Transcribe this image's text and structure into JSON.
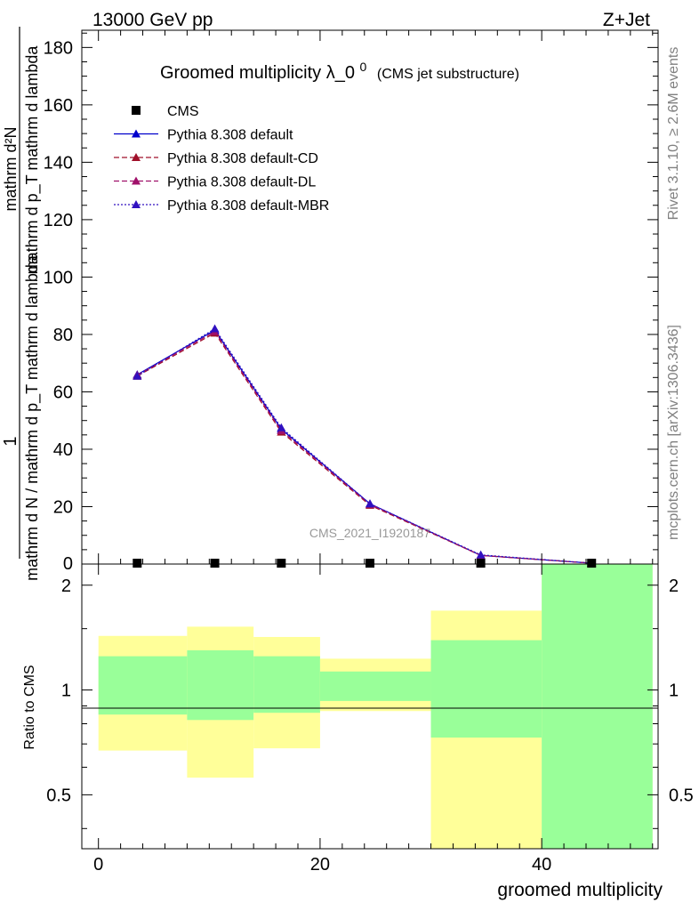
{
  "header": {
    "left": "13000 GeV pp",
    "right": "Z+Jet"
  },
  "side": {
    "rivet": "Rivet 3.1.10, ≥ 2.6M events",
    "mcplots": "mcplots.cern.ch [arXiv:1306.3436]"
  },
  "chart_data": {
    "type": "line",
    "title": "Groomed multiplicity",
    "title_symbol": "λ_0",
    "title_superscript": "0",
    "subtitle": "(CMS jet substructure)",
    "watermark": "CMS_2021_I1920187",
    "xlabel": "groomed multiplicity",
    "ylabel_numerator": "1",
    "ylabel_denominator": "mathrm d N / mathrm d p_T mathrm d lambda",
    "ylabel_top": "mathrm d²N",
    "ylabel_top_denominator": "mathrm d p_T mathrm d lambda",
    "ratio_ylabel": "Ratio to CMS",
    "xlim": [
      -1.5,
      50.5
    ],
    "ylim": [
      0,
      186
    ],
    "ratio_ylim": [
      0.35,
      2.3
    ],
    "ratio_log": true,
    "x_ticks": [
      0,
      20,
      40
    ],
    "y_ticks": [
      20,
      40,
      60,
      80,
      100,
      120,
      140,
      160,
      180
    ],
    "ratio_ticks": [
      {
        "v": 0.5,
        "label": "0.5"
      },
      {
        "v": 1,
        "label": "1"
      },
      {
        "v": 2,
        "label": "2"
      }
    ],
    "bin_edges": [
      0,
      8,
      14,
      20,
      30,
      40,
      50
    ],
    "x": [
      3.5,
      10.5,
      16.5,
      24.5,
      34.5,
      44.5
    ],
    "cms": [
      0.3,
      0.3,
      0.3,
      0.3,
      0.3,
      0.3
    ],
    "series": [
      {
        "name": "Pythia 8.308 default",
        "values": [
          66,
          81.5,
          47,
          21,
          3,
          0.3
        ],
        "color": "#0000cc",
        "dash": "solid"
      },
      {
        "name": "Pythia 8.308 default-CD",
        "values": [
          65.5,
          80.5,
          46,
          20.5,
          3,
          0.3
        ],
        "color": "#a0102a",
        "dash": "dashed"
      },
      {
        "name": "Pythia 8.308 default-DL",
        "values": [
          65.8,
          81,
          46.5,
          20.8,
          3,
          0.3
        ],
        "color": "#a0106a",
        "dash": "dashed"
      },
      {
        "name": "Pythia 8.308 default-MBR",
        "values": [
          65.5,
          82,
          47.5,
          21,
          3.2,
          0.3
        ],
        "color": "#3010c0",
        "dash": "dotted"
      }
    ],
    "legend": [
      "CMS",
      "Pythia 8.308 default",
      "Pythia 8.308 default-CD",
      "Pythia 8.308 default-DL",
      "Pythia 8.308 default-MBR"
    ],
    "band_yellow": [
      [
        0.67,
        1.43
      ],
      [
        0.56,
        1.52
      ],
      [
        0.68,
        1.42
      ],
      [
        0.87,
        1.23
      ],
      [
        0.35,
        1.69
      ],
      [
        0.35,
        2.3
      ]
    ],
    "band_green": [
      [
        0.85,
        1.25
      ],
      [
        0.82,
        1.3
      ],
      [
        0.86,
        1.25
      ],
      [
        0.93,
        1.13
      ],
      [
        0.73,
        1.39
      ],
      [
        0.35,
        2.3
      ]
    ],
    "colors": {
      "yellow": "#ffff99",
      "green": "#99ff99"
    }
  }
}
